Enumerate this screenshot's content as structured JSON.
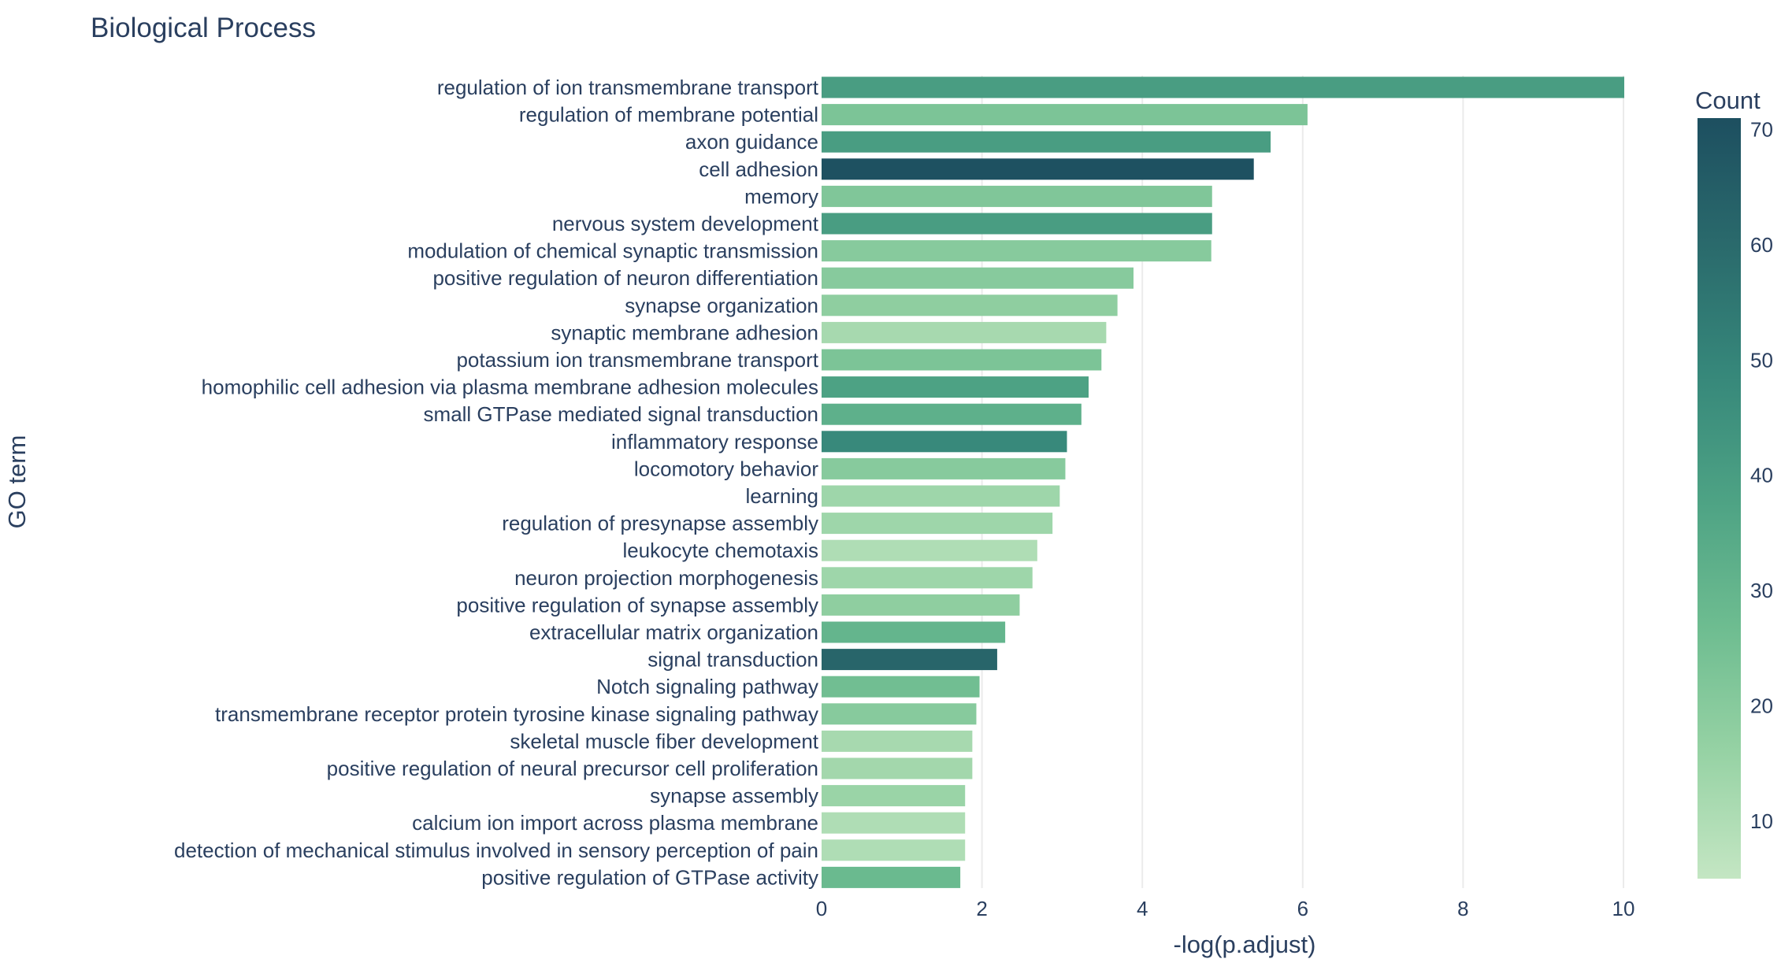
{
  "chart_data": {
    "type": "bar",
    "orientation": "horizontal",
    "title": "Biological Process",
    "xlabel": "-log(p.adjust)",
    "ylabel": "GO term",
    "xlim": [
      0,
      10.5
    ],
    "xticks": [
      0,
      2,
      4,
      6,
      8,
      10
    ],
    "grid": true,
    "colorbar": {
      "title": "Count",
      "min": 5,
      "max": 71,
      "ticks": [
        10,
        20,
        30,
        40,
        50,
        60,
        70
      ],
      "colors": [
        "#c4e6c3",
        "#96d2a4",
        "#6dbc90",
        "#4da284",
        "#36877a",
        "#2a6a6c",
        "#1d4f60"
      ]
    },
    "bars": [
      {
        "term": "regulation of ion transmembrane transport",
        "value": 10.01,
        "count": 40
      },
      {
        "term": "regulation of membrane potential",
        "value": 6.06,
        "count": 23
      },
      {
        "term": "axon guidance",
        "value": 5.6,
        "count": 40
      },
      {
        "term": "cell adhesion",
        "value": 5.39,
        "count": 70
      },
      {
        "term": "memory",
        "value": 4.87,
        "count": 22
      },
      {
        "term": "nervous system development",
        "value": 4.87,
        "count": 40
      },
      {
        "term": "modulation of chemical synaptic transmission",
        "value": 4.86,
        "count": 20
      },
      {
        "term": "positive regulation of neuron differentiation",
        "value": 3.89,
        "count": 20
      },
      {
        "term": "synapse organization",
        "value": 3.69,
        "count": 18
      },
      {
        "term": "synaptic membrane adhesion",
        "value": 3.55,
        "count": 12
      },
      {
        "term": "potassium ion transmembrane transport",
        "value": 3.49,
        "count": 23
      },
      {
        "term": "homophilic cell adhesion via plasma membrane adhesion molecules",
        "value": 3.33,
        "count": 38
      },
      {
        "term": "small GTPase mediated signal transduction",
        "value": 3.24,
        "count": 32
      },
      {
        "term": "inflammatory response",
        "value": 3.06,
        "count": 48
      },
      {
        "term": "locomotory behavior",
        "value": 3.04,
        "count": 20
      },
      {
        "term": "learning",
        "value": 2.97,
        "count": 14
      },
      {
        "term": "regulation of presynapse assembly",
        "value": 2.88,
        "count": 14
      },
      {
        "term": "leukocyte chemotaxis",
        "value": 2.69,
        "count": 10
      },
      {
        "term": "neuron projection morphogenesis",
        "value": 2.63,
        "count": 14
      },
      {
        "term": "positive regulation of synapse assembly",
        "value": 2.47,
        "count": 18
      },
      {
        "term": "extracellular matrix organization",
        "value": 2.29,
        "count": 30
      },
      {
        "term": "signal transduction",
        "value": 2.19,
        "count": 62
      },
      {
        "term": "Notch signaling pathway",
        "value": 1.97,
        "count": 26
      },
      {
        "term": "transmembrane receptor protein tyrosine kinase signaling pathway",
        "value": 1.93,
        "count": 20
      },
      {
        "term": "skeletal muscle fiber development",
        "value": 1.88,
        "count": 12
      },
      {
        "term": "positive regulation of neural precursor cell proliferation",
        "value": 1.88,
        "count": 13
      },
      {
        "term": "synapse assembly",
        "value": 1.79,
        "count": 15
      },
      {
        "term": "calcium ion import across plasma membrane",
        "value": 1.79,
        "count": 10
      },
      {
        "term": "detection of mechanical stimulus involved in sensory perception of pain",
        "value": 1.79,
        "count": 10
      },
      {
        "term": "positive regulation of GTPase activity",
        "value": 1.73,
        "count": 28
      }
    ]
  }
}
